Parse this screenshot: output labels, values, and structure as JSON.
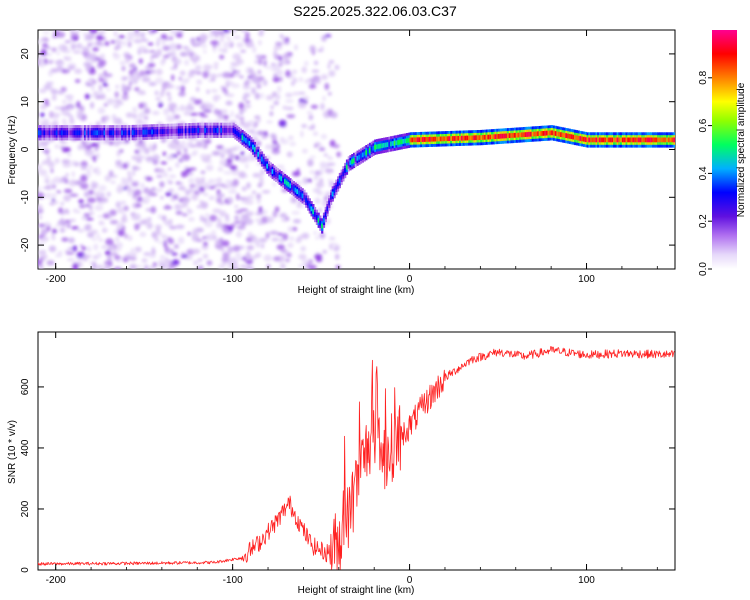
{
  "title": "S225.2025.322.06.03.C37",
  "chart_data": [
    {
      "type": "heatmap",
      "xlabel": "Height of straight line (km)",
      "ylabel": "Frequency (Hz)",
      "xlim": [
        -210,
        150
      ],
      "ylim": [
        -25,
        25
      ],
      "x_ticks": [
        -200,
        -100,
        0,
        100
      ],
      "y_ticks": [
        -20,
        -10,
        0,
        10,
        20
      ],
      "ridge": [
        {
          "x": -205,
          "y": 3.5
        },
        {
          "x": -160,
          "y": 3.5
        },
        {
          "x": -120,
          "y": 4
        },
        {
          "x": -100,
          "y": 4
        },
        {
          "x": -90,
          "y": 1
        },
        {
          "x": -80,
          "y": -4
        },
        {
          "x": -70,
          "y": -7
        },
        {
          "x": -60,
          "y": -10
        },
        {
          "x": -50,
          "y": -16
        },
        {
          "x": -45,
          "y": -10
        },
        {
          "x": -35,
          "y": -3
        },
        {
          "x": -20,
          "y": 0.5
        },
        {
          "x": 0,
          "y": 2
        },
        {
          "x": 40,
          "y": 2.5
        },
        {
          "x": 80,
          "y": 3.5
        },
        {
          "x": 100,
          "y": 2
        },
        {
          "x": 150,
          "y": 2
        }
      ],
      "colorbar": {
        "label": "Normalized spectral amplitude",
        "range": [
          0,
          1
        ],
        "ticks": [
          0.0,
          0.2,
          0.4,
          0.6,
          0.8
        ],
        "tick_labels": [
          "0.0",
          "0.2",
          "0.4",
          "0.6",
          "0.8"
        ],
        "colors": [
          "#ffffff",
          "#c8a8f0",
          "#8020e0",
          "#0000ff",
          "#00c0ff",
          "#00ff40",
          "#e0ff00",
          "#ff8000",
          "#ff0000",
          "#ff00a0"
        ]
      }
    },
    {
      "type": "line",
      "xlabel": "Height of straight line (km)",
      "ylabel": "SNR (10 * v/v)",
      "xlim": [
        -210,
        150
      ],
      "ylim": [
        0,
        780
      ],
      "x_ticks": [
        -200,
        -100,
        0,
        100
      ],
      "y_ticks": [
        0,
        200,
        400,
        600
      ],
      "line_color": "#ff2020",
      "series": [
        {
          "name": "SNR",
          "points": [
            {
              "x": -210,
              "y": 20
            },
            {
              "x": -150,
              "y": 22
            },
            {
              "x": -110,
              "y": 25
            },
            {
              "x": -95,
              "y": 40
            },
            {
              "x": -85,
              "y": 90
            },
            {
              "x": -75,
              "y": 160
            },
            {
              "x": -68,
              "y": 220
            },
            {
              "x": -62,
              "y": 150
            },
            {
              "x": -55,
              "y": 80
            },
            {
              "x": -47,
              "y": 55
            },
            {
              "x": -40,
              "y": 90
            },
            {
              "x": -33,
              "y": 200
            },
            {
              "x": -28,
              "y": 330
            },
            {
              "x": -22,
              "y": 430
            },
            {
              "x": -15,
              "y": 360
            },
            {
              "x": -8,
              "y": 420
            },
            {
              "x": 0,
              "y": 470
            },
            {
              "x": 8,
              "y": 540
            },
            {
              "x": 20,
              "y": 630
            },
            {
              "x": 35,
              "y": 690
            },
            {
              "x": 50,
              "y": 715
            },
            {
              "x": 65,
              "y": 700
            },
            {
              "x": 80,
              "y": 720
            },
            {
              "x": 100,
              "y": 705
            },
            {
              "x": 120,
              "y": 710
            },
            {
              "x": 150,
              "y": 705
            }
          ]
        }
      ]
    }
  ]
}
